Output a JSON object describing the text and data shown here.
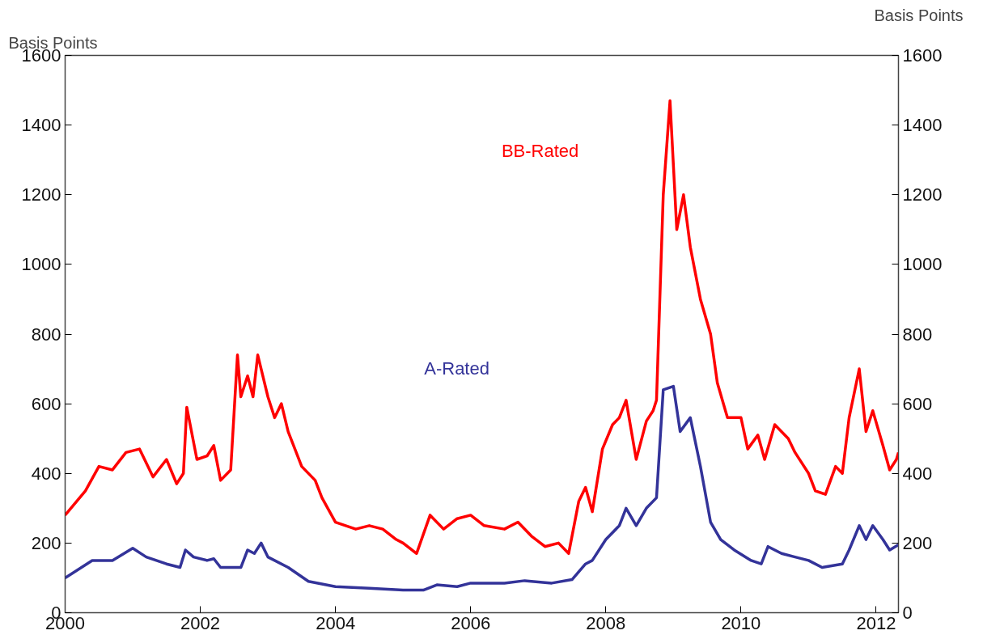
{
  "chart_data": {
    "type": "line",
    "ylabel": "Basis Points",
    "y2label": "Basis Points",
    "xlim": [
      2000,
      2012.33
    ],
    "xticks": [
      2000,
      2002,
      2004,
      2006,
      2008,
      2010,
      2012
    ],
    "ylim": [
      0,
      1600
    ],
    "yticks": [
      0,
      200,
      400,
      600,
      800,
      1000,
      1200,
      1400,
      1600
    ],
    "y2lim": [
      0,
      1600
    ],
    "y2ticks": [
      0,
      200,
      400,
      600,
      800,
      1000,
      1200,
      1400,
      1600
    ],
    "grid": false,
    "marker": "none",
    "line_style": "solid",
    "series": [
      {
        "name": "BB-Rated",
        "color": "#ff0000",
        "x": [
          2000.0,
          2000.3,
          2000.5,
          2000.7,
          2000.9,
          2001.1,
          2001.3,
          2001.5,
          2001.65,
          2001.75,
          2001.8,
          2001.95,
          2002.1,
          2002.2,
          2002.3,
          2002.45,
          2002.55,
          2002.6,
          2002.7,
          2002.78,
          2002.85,
          2003.0,
          2003.1,
          2003.2,
          2003.3,
          2003.5,
          2003.7,
          2003.8,
          2004.0,
          2004.3,
          2004.5,
          2004.7,
          2004.9,
          2005.0,
          2005.2,
          2005.4,
          2005.6,
          2005.8,
          2006.0,
          2006.2,
          2006.5,
          2006.7,
          2006.9,
          2007.1,
          2007.3,
          2007.45,
          2007.6,
          2007.7,
          2007.8,
          2007.95,
          2008.1,
          2008.2,
          2008.3,
          2008.45,
          2008.6,
          2008.7,
          2008.75,
          2008.85,
          2008.95,
          2009.05,
          2009.15,
          2009.25,
          2009.4,
          2009.55,
          2009.65,
          2009.8,
          2010.0,
          2010.1,
          2010.25,
          2010.35,
          2010.5,
          2010.7,
          2010.8,
          2011.0,
          2011.1,
          2011.25,
          2011.4,
          2011.5,
          2011.6,
          2011.75,
          2011.85,
          2011.95,
          2012.1,
          2012.2,
          2012.3,
          2012.33
        ],
        "values": [
          280,
          350,
          420,
          410,
          460,
          470,
          390,
          440,
          370,
          400,
          590,
          440,
          450,
          480,
          380,
          410,
          740,
          620,
          680,
          620,
          740,
          620,
          560,
          600,
          520,
          420,
          380,
          330,
          260,
          240,
          250,
          240,
          210,
          200,
          170,
          280,
          240,
          270,
          280,
          250,
          240,
          260,
          220,
          190,
          200,
          170,
          320,
          360,
          290,
          470,
          540,
          560,
          610,
          440,
          550,
          580,
          610,
          1200,
          1470,
          1100,
          1200,
          1050,
          900,
          800,
          660,
          560,
          560,
          470,
          510,
          440,
          540,
          500,
          460,
          400,
          350,
          340,
          420,
          400,
          560,
          700,
          520,
          580,
          480,
          410,
          440,
          460
        ]
      },
      {
        "name": "A-Rated",
        "color": "#333399",
        "x": [
          2000.0,
          2000.4,
          2000.7,
          2001.0,
          2001.2,
          2001.5,
          2001.7,
          2001.78,
          2001.9,
          2002.1,
          2002.2,
          2002.3,
          2002.6,
          2002.7,
          2002.8,
          2002.9,
          2003.0,
          2003.3,
          2003.6,
          2004.0,
          2004.5,
          2005.0,
          2005.3,
          2005.5,
          2005.8,
          2006.0,
          2006.5,
          2006.8,
          2007.2,
          2007.5,
          2007.7,
          2007.8,
          2008.0,
          2008.2,
          2008.3,
          2008.45,
          2008.6,
          2008.75,
          2008.85,
          2009.0,
          2009.1,
          2009.25,
          2009.4,
          2009.55,
          2009.7,
          2009.9,
          2010.15,
          2010.3,
          2010.4,
          2010.6,
          2010.8,
          2011.0,
          2011.2,
          2011.5,
          2011.6,
          2011.75,
          2011.85,
          2011.95,
          2012.1,
          2012.2,
          2012.33
        ],
        "values": [
          100,
          150,
          150,
          185,
          160,
          140,
          130,
          180,
          160,
          150,
          155,
          130,
          130,
          180,
          170,
          200,
          160,
          130,
          90,
          75,
          70,
          65,
          65,
          80,
          75,
          85,
          85,
          92,
          85,
          95,
          140,
          150,
          210,
          250,
          300,
          250,
          300,
          330,
          640,
          650,
          520,
          560,
          420,
          260,
          210,
          180,
          150,
          140,
          190,
          170,
          160,
          150,
          130,
          140,
          180,
          250,
          210,
          250,
          210,
          180,
          195
        ]
      }
    ]
  }
}
